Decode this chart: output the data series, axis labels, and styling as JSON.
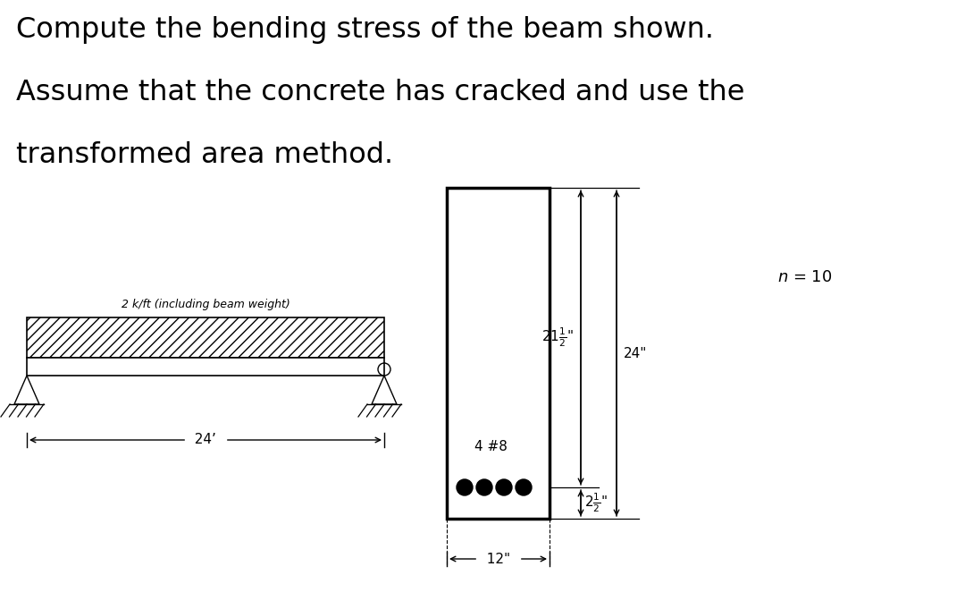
{
  "title_lines": [
    "Compute the bending stress of the beam shown.",
    "Assume that the concrete has cracked and use the",
    "transformed area method."
  ],
  "title_fontsize": 23,
  "bg_color": "#ffffff",
  "beam_label": "2 k/ft (including beam weight)",
  "span_label": "24’",
  "n_label": "n = 10",
  "dim_21half": "21$\\frac{1}{2}$\"",
  "dim_24": "24\"",
  "dim_4bars": "4 #8",
  "dim_2half": "2$\\frac{1}{2}$\"",
  "dim_12": "12\"",
  "hatch_pattern": "///",
  "lw_border": 2.0,
  "lw_dim": 1.0
}
